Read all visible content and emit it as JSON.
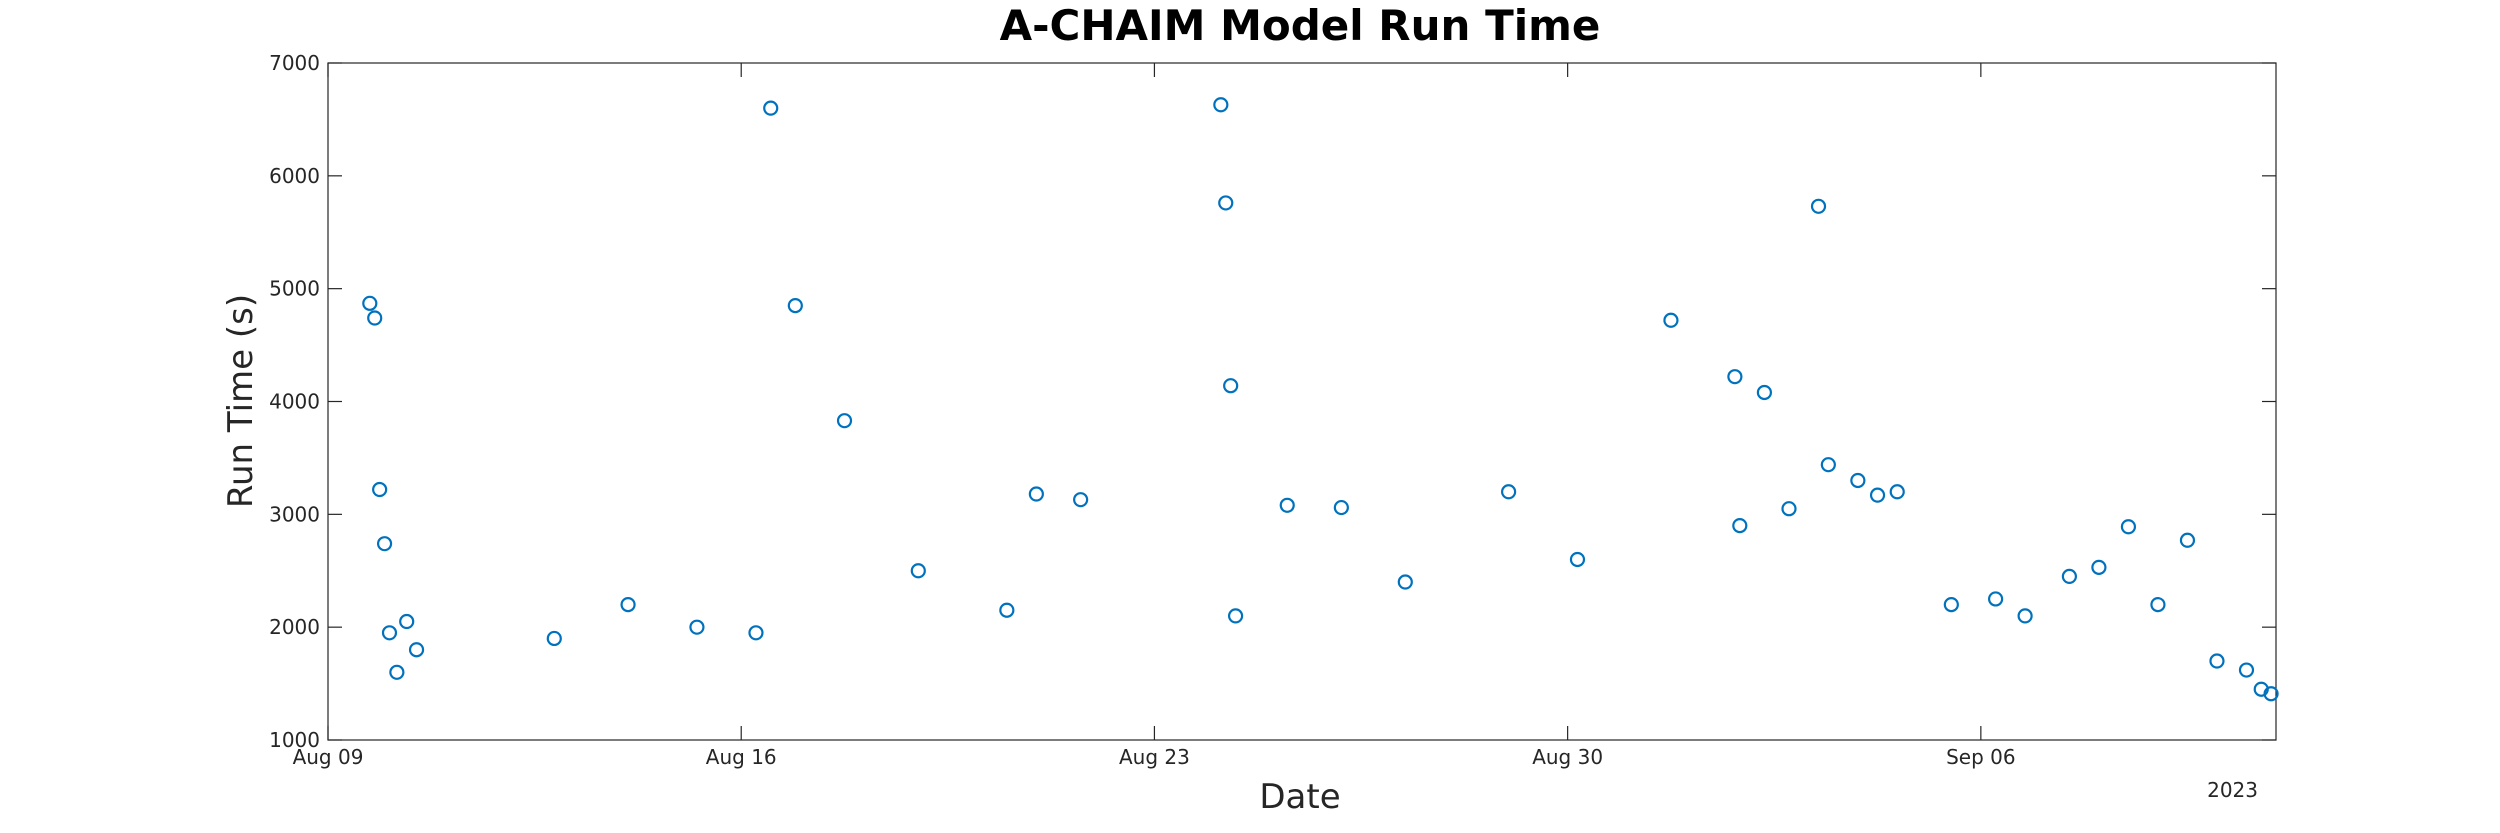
{
  "chart_data": {
    "type": "scatter",
    "title": "A-CHAIM Model Run Time",
    "xlabel": "Date",
    "ylabel": "Run Time (s)",
    "x_tick_labels": [
      "Aug 09",
      "Aug 16",
      "Aug 23",
      "Aug 30",
      "Sep 06"
    ],
    "x_secondary_label": "2023",
    "xlim": [
      "2023-08-09",
      "2023-09-11"
    ],
    "ylim": [
      1000,
      7000
    ],
    "y_ticks": [
      1000,
      2000,
      3000,
      4000,
      5000,
      6000,
      7000
    ],
    "grid": false,
    "marker": "open-circle",
    "color": "#0072BD",
    "series": [
      {
        "x": [
          "2023-08-09 17:00",
          "2023-08-09 19:00",
          "2023-08-09 21:00",
          "2023-08-09 23:00",
          "2023-08-10 01:00",
          "2023-08-10 04:00",
          "2023-08-10 08:00",
          "2023-08-10 12:00",
          "2023-08-12 20:00",
          "2023-08-14 02:00",
          "2023-08-15 06:00",
          "2023-08-16 06:00",
          "2023-08-16 12:00",
          "2023-08-16 22:00",
          "2023-08-17 18:00",
          "2023-08-19 00:00",
          "2023-08-20 12:00",
          "2023-08-21 00:00",
          "2023-08-21 18:00",
          "2023-08-24 03:00",
          "2023-08-24 05:00",
          "2023-08-24 07:00",
          "2023-08-24 09:00",
          "2023-08-25 06:00",
          "2023-08-26 04:00",
          "2023-08-27 06:00",
          "2023-08-29 00:00",
          "2023-08-30 04:00",
          "2023-08-31 18:00",
          "2023-09-01 20:00",
          "2023-09-01 22:00",
          "2023-09-02 08:00",
          "2023-09-02 18:00",
          "2023-09-03 06:00",
          "2023-09-03 10:00",
          "2023-09-03 22:00",
          "2023-09-04 06:00",
          "2023-09-04 14:00",
          "2023-09-05 12:00",
          "2023-09-06 06:00",
          "2023-09-06 18:00",
          "2023-09-07 12:00",
          "2023-09-08 00:00",
          "2023-09-08 12:00",
          "2023-09-09 00:00",
          "2023-09-09 12:00",
          "2023-09-10 00:00",
          "2023-09-10 12:00",
          "2023-09-10 18:00",
          "2023-09-10 22:00"
        ],
        "y": [
          4870,
          4740,
          3220,
          2740,
          1950,
          1600,
          2050,
          1800,
          1900,
          2200,
          2000,
          1950,
          6600,
          4850,
          3830,
          2500,
          2150,
          3180,
          3130,
          6630,
          5760,
          4140,
          2100,
          3080,
          3060,
          2400,
          3200,
          2600,
          4720,
          4220,
          2900,
          4080,
          3050,
          5730,
          3440,
          3300,
          3170,
          3200,
          2200,
          2250,
          2100,
          2450,
          2530,
          2890,
          2200,
          2770,
          1700,
          1620,
          1450,
          1410
        ]
      }
    ]
  }
}
